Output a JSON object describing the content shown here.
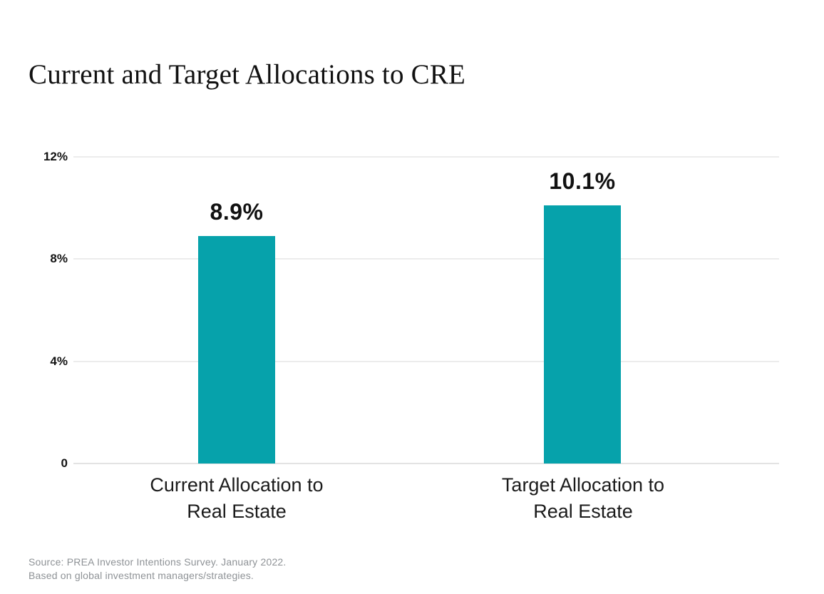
{
  "title": "Current and Target Allocations to CRE",
  "chart_data": {
    "type": "bar",
    "title": "Current and Target Allocations to CRE",
    "categories": [
      "Current Allocation to Real Estate",
      "Target Allocation to Real Estate"
    ],
    "category_lines": [
      [
        "Current Allocation to",
        "Real Estate"
      ],
      [
        "Target Allocation to",
        "Real Estate"
      ]
    ],
    "values": [
      8.9,
      10.1
    ],
    "value_labels": [
      "8.9%",
      "10.1%"
    ],
    "xlabel": "",
    "ylabel": "",
    "ylim": [
      0,
      12
    ],
    "yticks": [
      0,
      4,
      8,
      12
    ],
    "ytick_labels": [
      "0",
      "4%",
      "8%",
      "12%"
    ],
    "grid": true,
    "legend": false,
    "bar_color": "#06a2ab"
  },
  "source": {
    "line1": "Source: PREA Investor Intentions Survey. January 2022.",
    "line2": "Based on global investment managers/strategies."
  },
  "colors": {
    "background": "#ffffff",
    "bar": "#06a2ab",
    "gridline": "#ececec",
    "text": "#111111",
    "source_text": "#8e9296"
  }
}
